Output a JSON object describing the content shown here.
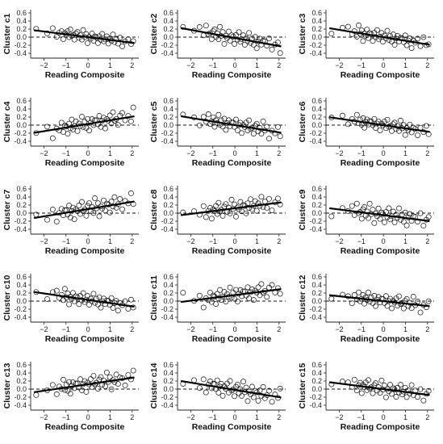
{
  "chart_data": {
    "type": "scatter",
    "layout": "5 rows x 3 columns",
    "xlabel": "Reading Composite",
    "xticks": [
      -2,
      -1,
      0,
      1,
      2
    ],
    "yticks": [
      -0.4,
      -0.2,
      0.0,
      0.2,
      0.4,
      0.6
    ],
    "xlim": [
      -2.6,
      2.3
    ],
    "ylim": [
      -0.52,
      0.68
    ],
    "reference_line": {
      "y": 0,
      "style": "dashed"
    },
    "fit_line": "solid linear regression",
    "marker": "open circle",
    "panels": [
      {
        "ylabel": "Cluster c1",
        "slope": -0.07,
        "intercept": 0.0,
        "spread": 0.1
      },
      {
        "ylabel": "Cluster c2",
        "slope": -0.1,
        "intercept": -0.02,
        "spread": 0.13
      },
      {
        "ylabel": "Cluster c3",
        "slope": -0.09,
        "intercept": 0.0,
        "spread": 0.12
      },
      {
        "ylabel": "Cluster c4",
        "slope": 0.09,
        "intercept": 0.03,
        "spread": 0.14
      },
      {
        "ylabel": "Cluster c5",
        "slope": -0.09,
        "intercept": 0.0,
        "spread": 0.13
      },
      {
        "ylabel": "Cluster c6",
        "slope": -0.08,
        "intercept": 0.0,
        "spread": 0.11
      },
      {
        "ylabel": "Cluster c7",
        "slope": 0.09,
        "intercept": 0.1,
        "spread": 0.15
      },
      {
        "ylabel": "Cluster c8",
        "slope": 0.07,
        "intercept": 0.12,
        "spread": 0.14
      },
      {
        "ylabel": "Cluster c9",
        "slope": -0.07,
        "intercept": -0.05,
        "spread": 0.15
      },
      {
        "ylabel": "Cluster c10",
        "slope": -0.08,
        "intercept": 0.03,
        "spread": 0.12
      },
      {
        "ylabel": "Cluster c11",
        "slope": 0.07,
        "intercept": 0.15,
        "spread": 0.14
      },
      {
        "ylabel": "Cluster c12",
        "slope": -0.06,
        "intercept": 0.0,
        "spread": 0.12
      },
      {
        "ylabel": "Cluster c13",
        "slope": 0.08,
        "intercept": 0.12,
        "spread": 0.14
      },
      {
        "ylabel": "Cluster c14",
        "slope": -0.09,
        "intercept": -0.02,
        "spread": 0.15
      },
      {
        "ylabel": "Cluster c15",
        "slope": -0.07,
        "intercept": 0.0,
        "spread": 0.13
      }
    ],
    "reading_composite_samples": [
      -2.35,
      -1.85,
      -1.6,
      -1.42,
      -1.31,
      -1.2,
      -1.12,
      -1.05,
      -0.98,
      -0.92,
      -0.86,
      -0.8,
      -0.74,
      -0.68,
      -0.62,
      -0.55,
      -0.48,
      -0.41,
      -0.35,
      -0.28,
      -0.22,
      -0.15,
      -0.08,
      -0.02,
      0.05,
      0.12,
      0.18,
      0.25,
      0.31,
      0.38,
      0.45,
      0.51,
      0.58,
      0.64,
      0.71,
      0.78,
      0.85,
      0.92,
      0.99,
      1.06,
      1.13,
      1.2,
      1.28,
      1.36,
      1.45,
      1.55,
      1.68,
      1.82,
      1.95,
      2.05
    ],
    "residual_pattern": [
      0.42,
      -0.35,
      1.1,
      -0.9,
      0.15,
      0.65,
      -1.3,
      0.3,
      -0.05,
      0.85,
      -0.6,
      1.35,
      -0.2,
      0.05,
      -1.05,
      0.55,
      0.95,
      -0.45,
      0.25,
      -0.8,
      1.6,
      -0.1,
      0.7,
      -1.5,
      0.1,
      -0.3,
      1.0,
      -0.7,
      0.4,
      0.2,
      -1.15,
      0.6,
      -0.25,
      1.25,
      -0.55,
      0.0,
      0.8,
      -0.95,
      0.35,
      -0.15,
      1.45,
      -0.4,
      0.5,
      -0.65,
      0.9,
      -1.2,
      0.15,
      0.75,
      -0.35,
      0.45
    ]
  }
}
